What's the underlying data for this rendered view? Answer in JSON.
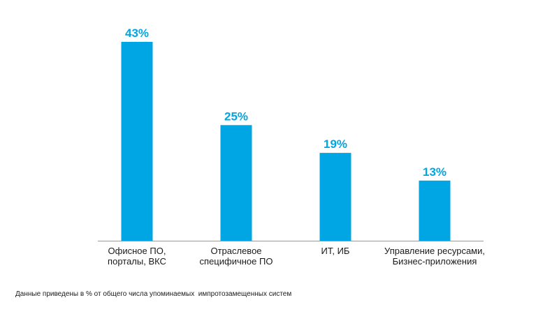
{
  "chart_data": {
    "type": "bar",
    "categories": [
      [
        "Офисное ПО,",
        "порталы, ВКС"
      ],
      [
        "Отраслевое",
        "специфичное ПО"
      ],
      [
        "ИТ, ИБ"
      ],
      [
        "Управление ресурсами,",
        "Бизнес-приложения"
      ]
    ],
    "values": [
      43,
      25,
      19,
      13
    ],
    "data_labels": [
      "43%",
      "25%",
      "19%",
      "13%"
    ],
    "unit": "%",
    "ylim": [
      0,
      43
    ],
    "grid": false,
    "legend": "none"
  },
  "colors": {
    "bar": "#00A6E3",
    "value_label": "#00A6E3",
    "axis": "#9a9a9a",
    "text": "#1a1a1a"
  },
  "footnote": "Данные приведены в % от общего числа упоминаемых  импротозамещенных систем"
}
